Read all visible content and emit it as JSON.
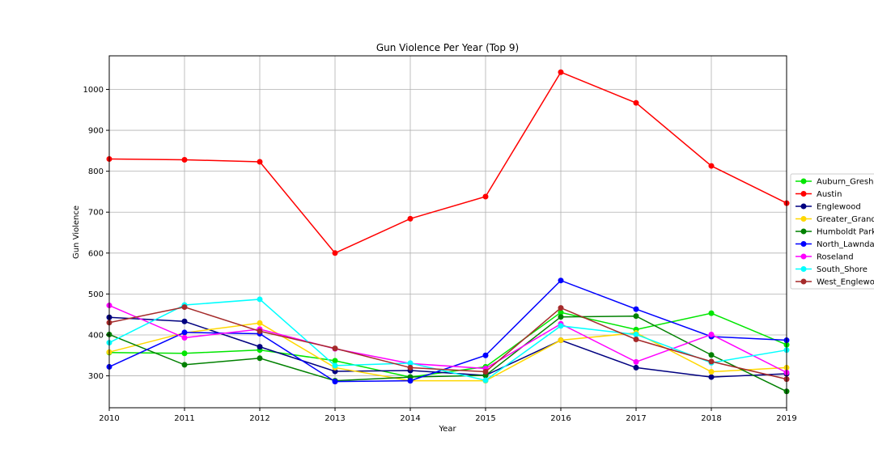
{
  "chart_data": {
    "type": "line",
    "title": "Gun Violence Per Year (Top 9)",
    "xlabel": "Year",
    "ylabel": "Gun Violence",
    "x": [
      2010,
      2011,
      2012,
      2013,
      2014,
      2015,
      2016,
      2017,
      2018,
      2019
    ],
    "xlim": [
      2010,
      2019
    ],
    "ylim": [
      222,
      1082
    ],
    "yticks": [
      300,
      400,
      500,
      600,
      700,
      800,
      900,
      1000
    ],
    "grid": true,
    "legend_position": "right-outside",
    "series": [
      {
        "name": "Auburn_Gresham",
        "color": "#00e600",
        "values": [
          357,
          355,
          363,
          337,
          297,
          322,
          455,
          413,
          453,
          376
        ]
      },
      {
        "name": "Austin",
        "color": "#ff0000",
        "values": [
          830,
          828,
          823,
          600,
          684,
          738,
          1042,
          967,
          813,
          722
        ]
      },
      {
        "name": "Englewood",
        "color": "#000080",
        "values": [
          443,
          433,
          371,
          311,
          313,
          301,
          387,
          320,
          297,
          305
        ]
      },
      {
        "name": "Greater_Grand_Crossing",
        "color": "#ffd700",
        "values": [
          358,
          405,
          429,
          320,
          288,
          288,
          387,
          405,
          310,
          320
        ]
      },
      {
        "name": "Humboldt Park",
        "color": "#008000",
        "values": [
          401,
          327,
          343,
          288,
          297,
          301,
          444,
          446,
          351,
          262
        ]
      },
      {
        "name": "North_Lawndale",
        "color": "#0000ff",
        "values": [
          322,
          406,
          403,
          286,
          288,
          350,
          533,
          463,
          396,
          387
        ]
      },
      {
        "name": "Roseland",
        "color": "#ff00ff",
        "values": [
          472,
          393,
          414,
          366,
          330,
          318,
          427,
          334,
          401,
          308
        ]
      },
      {
        "name": "South_Shore",
        "color": "#00ffff",
        "values": [
          381,
          473,
          487,
          325,
          331,
          289,
          422,
          401,
          332,
          363
        ]
      },
      {
        "name": "West_Englewood",
        "color": "#a52a2a",
        "values": [
          430,
          468,
          409,
          367,
          320,
          310,
          466,
          389,
          335,
          292
        ]
      }
    ]
  }
}
